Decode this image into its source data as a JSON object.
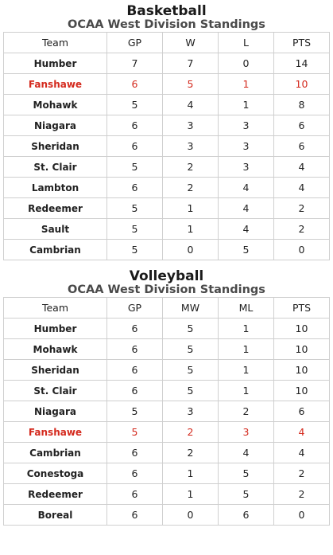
{
  "basketball": {
    "title": "Basketball",
    "subtitle": "OCAA West Division Standings",
    "headers": [
      "Team",
      "GP",
      "W",
      "L",
      "PTS"
    ],
    "rows": [
      {
        "team": "Humber",
        "gp": "7",
        "w": "7",
        "l": "0",
        "pts": "14",
        "highlight": false
      },
      {
        "team": "Fanshawe",
        "gp": "6",
        "w": "5",
        "l": "1",
        "pts": "10",
        "highlight": true
      },
      {
        "team": "Mohawk",
        "gp": "5",
        "w": "4",
        "l": "1",
        "pts": "8",
        "highlight": false
      },
      {
        "team": "Niagara",
        "gp": "6",
        "w": "3",
        "l": "3",
        "pts": "6",
        "highlight": false
      },
      {
        "team": "Sheridan",
        "gp": "6",
        "w": "3",
        "l": "3",
        "pts": "6",
        "highlight": false
      },
      {
        "team": "St. Clair",
        "gp": "5",
        "w": "2",
        "l": "3",
        "pts": "4",
        "highlight": false
      },
      {
        "team": "Lambton",
        "gp": "6",
        "w": "2",
        "l": "4",
        "pts": "4",
        "highlight": false
      },
      {
        "team": "Redeemer",
        "gp": "5",
        "w": "1",
        "l": "4",
        "pts": "2",
        "highlight": false
      },
      {
        "team": "Sault",
        "gp": "5",
        "w": "1",
        "l": "4",
        "pts": "2",
        "highlight": false
      },
      {
        "team": "Cambrian",
        "gp": "5",
        "w": "0",
        "l": "5",
        "pts": "0",
        "highlight": false
      }
    ]
  },
  "volleyball": {
    "title": "Volleyball",
    "subtitle": "OCAA West Division Standings",
    "headers": [
      "Team",
      "GP",
      "MW",
      "ML",
      "PTS"
    ],
    "rows": [
      {
        "team": "Humber",
        "gp": "6",
        "w": "5",
        "l": "1",
        "pts": "10",
        "highlight": false
      },
      {
        "team": "Mohawk",
        "gp": "6",
        "w": "5",
        "l": "1",
        "pts": "10",
        "highlight": false
      },
      {
        "team": "Sheridan",
        "gp": "6",
        "w": "5",
        "l": "1",
        "pts": "10",
        "highlight": false
      },
      {
        "team": "St. Clair",
        "gp": "6",
        "w": "5",
        "l": "1",
        "pts": "10",
        "highlight": false
      },
      {
        "team": "Niagara",
        "gp": "5",
        "w": "3",
        "l": "2",
        "pts": "6",
        "highlight": false
      },
      {
        "team": "Fanshawe",
        "gp": "5",
        "w": "2",
        "l": "3",
        "pts": "4",
        "highlight": true
      },
      {
        "team": "Cambrian",
        "gp": "6",
        "w": "2",
        "l": "4",
        "pts": "4",
        "highlight": false
      },
      {
        "team": "Conestoga",
        "gp": "6",
        "w": "1",
        "l": "5",
        "pts": "2",
        "highlight": false
      },
      {
        "team": "Redeemer",
        "gp": "6",
        "w": "1",
        "l": "5",
        "pts": "2",
        "highlight": false
      },
      {
        "team": "Boreal",
        "gp": "6",
        "w": "0",
        "l": "6",
        "pts": "0",
        "highlight": false
      }
    ]
  },
  "colors": {
    "highlight": "#d42a1e",
    "border": "#cfcfcf",
    "subtitle": "#4a4a4a"
  }
}
